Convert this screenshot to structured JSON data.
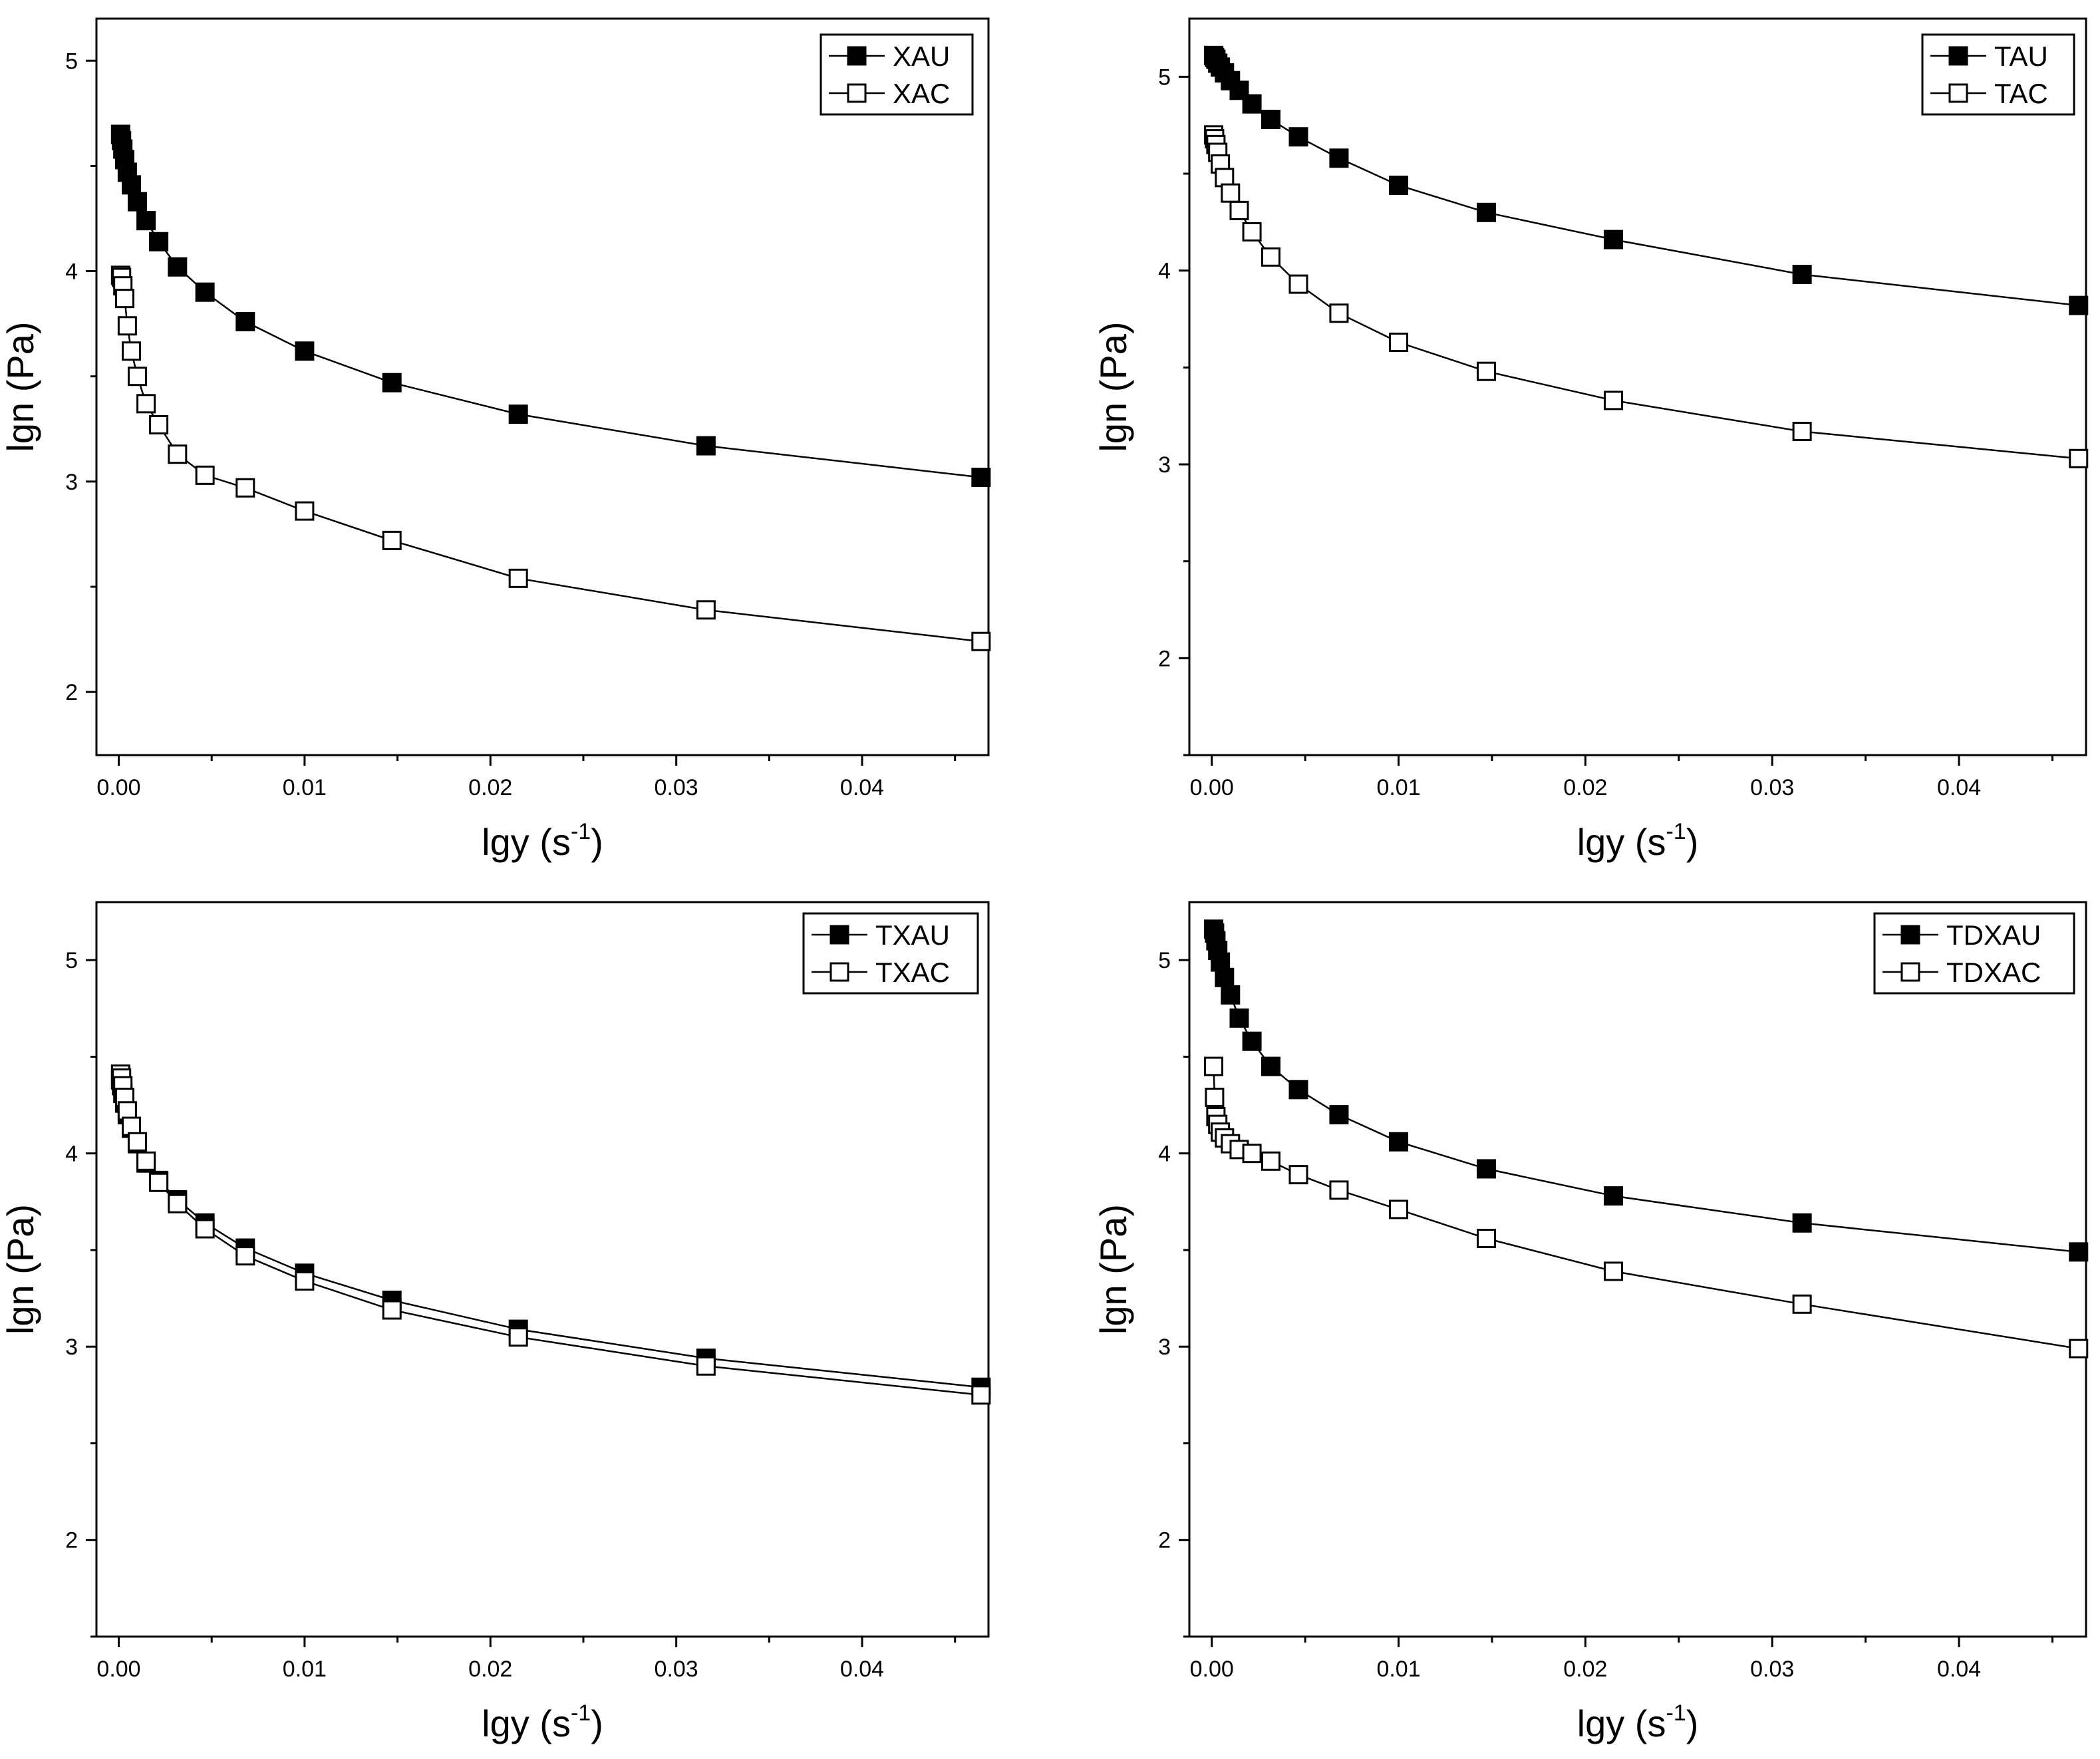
{
  "chart_data": [
    {
      "type": "line",
      "panel": "top-left",
      "xlabel": "lgy (s",
      "xlabel_sup": "-1",
      "xlabel_close": ")",
      "ylabel": "lgn (Pa)",
      "xlim": [
        -0.0012,
        0.0468
      ],
      "ylim": [
        1.7,
        5.2
      ],
      "xticks": [
        0.0,
        0.01,
        0.02,
        0.03,
        0.04
      ],
      "xtick_labels": [
        "0.00",
        "0.01",
        "0.02",
        "0.03",
        "0.04"
      ],
      "yticks": [
        2,
        3,
        4,
        5
      ],
      "ytick_labels": [
        "2",
        "3",
        "4",
        "5"
      ],
      "legend_position": "top-right",
      "x": [
        0.0001,
        0.00015,
        0.00022,
        0.00032,
        0.00046,
        0.00068,
        0.001,
        0.00147,
        0.00215,
        0.00316,
        0.00464,
        0.00681,
        0.01,
        0.0147,
        0.0215,
        0.0316,
        0.0464
      ],
      "series": [
        {
          "name": "XAU",
          "marker": "filled-square",
          "values": [
            4.65,
            4.62,
            4.58,
            4.53,
            4.47,
            4.41,
            4.33,
            4.24,
            4.14,
            4.02,
            3.9,
            3.76,
            3.62,
            3.47,
            3.32,
            3.17,
            3.02
          ]
        },
        {
          "name": "XAC",
          "marker": "open-square",
          "values": [
            3.98,
            3.97,
            3.93,
            3.87,
            3.74,
            3.62,
            3.5,
            3.37,
            3.27,
            3.13,
            3.03,
            2.97,
            2.86,
            2.72,
            2.54,
            2.39,
            2.24
          ]
        }
      ]
    },
    {
      "type": "line",
      "panel": "top-right",
      "xlabel": "lgy (s",
      "xlabel_sup": "-1",
      "xlabel_close": ")",
      "ylabel": "lgn (Pa)",
      "xlim": [
        -0.0012,
        0.0468
      ],
      "ylim": [
        1.5,
        5.3
      ],
      "xticks": [
        0.0,
        0.01,
        0.02,
        0.03,
        0.04
      ],
      "xtick_labels": [
        "0.00",
        "0.01",
        "0.02",
        "0.03",
        "0.04"
      ],
      "yticks": [
        2,
        3,
        4,
        5
      ],
      "ytick_labels": [
        "2",
        "3",
        "4",
        "5"
      ],
      "legend_position": "top-right",
      "x": [
        0.0001,
        0.00015,
        0.00022,
        0.00032,
        0.00046,
        0.00068,
        0.001,
        0.00147,
        0.00215,
        0.00316,
        0.00464,
        0.00681,
        0.01,
        0.0147,
        0.0215,
        0.0316,
        0.0464
      ],
      "series": [
        {
          "name": "TAU",
          "marker": "filled-square",
          "values": [
            5.11,
            5.1,
            5.09,
            5.07,
            5.05,
            5.02,
            4.98,
            4.93,
            4.86,
            4.78,
            4.69,
            4.58,
            4.44,
            4.3,
            4.16,
            3.98,
            3.82
          ]
        },
        {
          "name": "TAC",
          "marker": "open-square",
          "values": [
            4.7,
            4.68,
            4.65,
            4.61,
            4.55,
            4.48,
            4.4,
            4.31,
            4.2,
            4.07,
            3.93,
            3.78,
            3.63,
            3.48,
            3.33,
            3.17,
            3.03
          ]
        }
      ]
    },
    {
      "type": "line",
      "panel": "bottom-left",
      "xlabel": "lgy (s",
      "xlabel_sup": "-1",
      "xlabel_close": ")",
      "ylabel": "lgn (Pa)",
      "xlim": [
        -0.0012,
        0.0468
      ],
      "ylim": [
        1.5,
        5.3
      ],
      "xticks": [
        0.0,
        0.01,
        0.02,
        0.03,
        0.04
      ],
      "xtick_labels": [
        "0.00",
        "0.01",
        "0.02",
        "0.03",
        "0.04"
      ],
      "yticks": [
        2,
        3,
        4,
        5
      ],
      "ytick_labels": [
        "2",
        "3",
        "4",
        "5"
      ],
      "legend_position": "top-right",
      "x": [
        0.0001,
        0.00015,
        0.00022,
        0.00032,
        0.00046,
        0.00068,
        0.001,
        0.00147,
        0.00215,
        0.00316,
        0.00464,
        0.00681,
        0.01,
        0.0147,
        0.0215,
        0.0316,
        0.0464
      ],
      "series": [
        {
          "name": "TXAU",
          "marker": "filled-square",
          "values": [
            4.38,
            4.35,
            4.31,
            4.26,
            4.2,
            4.13,
            4.05,
            3.95,
            3.86,
            3.76,
            3.64,
            3.51,
            3.38,
            3.24,
            3.09,
            2.94,
            2.79
          ]
        },
        {
          "name": "TXAC",
          "marker": "open-square",
          "values": [
            4.41,
            4.39,
            4.35,
            4.29,
            4.22,
            4.14,
            4.06,
            3.96,
            3.85,
            3.74,
            3.61,
            3.47,
            3.34,
            3.19,
            3.05,
            2.9,
            2.75
          ]
        }
      ]
    },
    {
      "type": "line",
      "panel": "bottom-right",
      "xlabel": "lgy (s",
      "xlabel_sup": "-1",
      "xlabel_close": ")",
      "ylabel": "lgn (Pa)",
      "xlim": [
        -0.0012,
        0.0468
      ],
      "ylim": [
        1.5,
        5.3
      ],
      "xticks": [
        0.0,
        0.01,
        0.02,
        0.03,
        0.04
      ],
      "xtick_labels": [
        "0.00",
        "0.01",
        "0.02",
        "0.03",
        "0.04"
      ],
      "yticks": [
        2,
        3,
        4,
        5
      ],
      "ytick_labels": [
        "2",
        "3",
        "4",
        "5"
      ],
      "legend_position": "top-right",
      "x": [
        0.0001,
        0.00015,
        0.00022,
        0.00032,
        0.00046,
        0.00068,
        0.001,
        0.00147,
        0.00215,
        0.00316,
        0.00464,
        0.00681,
        0.01,
        0.0147,
        0.0215,
        0.0316,
        0.0464
      ],
      "series": [
        {
          "name": "TDXAU",
          "marker": "filled-square",
          "values": [
            5.16,
            5.14,
            5.1,
            5.05,
            4.99,
            4.91,
            4.82,
            4.7,
            4.58,
            4.45,
            4.33,
            4.2,
            4.06,
            3.92,
            3.78,
            3.64,
            3.49
          ]
        },
        {
          "name": "TDXAC",
          "marker": "open-square",
          "values": [
            4.45,
            4.29,
            4.19,
            4.15,
            4.11,
            4.08,
            4.05,
            4.02,
            4.0,
            3.96,
            3.89,
            3.81,
            3.71,
            3.56,
            3.39,
            3.22,
            2.99
          ]
        }
      ]
    }
  ]
}
